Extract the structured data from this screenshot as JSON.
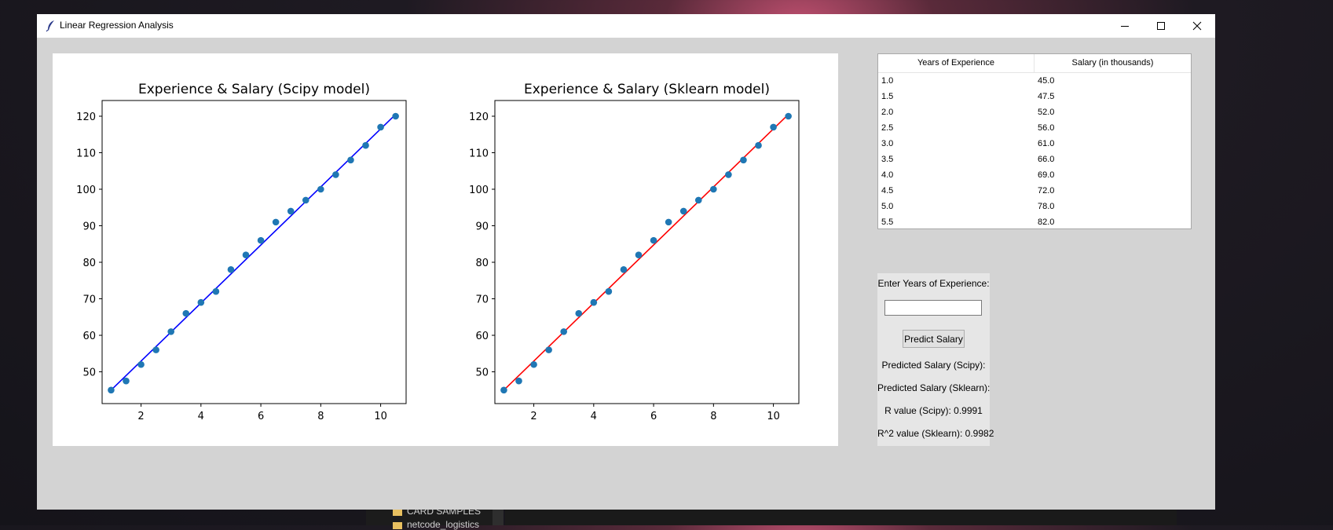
{
  "window": {
    "title": "Linear Regression Analysis"
  },
  "background": {
    "folders": [
      "CARD SAMPLES",
      "netcode_logistics"
    ]
  },
  "table": {
    "headers": [
      "Years of Experience",
      "Salary (in thousands)"
    ],
    "rows": [
      [
        "1.0",
        "45.0"
      ],
      [
        "1.5",
        "47.5"
      ],
      [
        "2.0",
        "52.0"
      ],
      [
        "2.5",
        "56.0"
      ],
      [
        "3.0",
        "61.0"
      ],
      [
        "3.5",
        "66.0"
      ],
      [
        "4.0",
        "69.0"
      ],
      [
        "4.5",
        "72.0"
      ],
      [
        "5.0",
        "78.0"
      ],
      [
        "5.5",
        "82.0"
      ]
    ]
  },
  "panel": {
    "input_label": "Enter Years of Experience:",
    "input_value": "",
    "predict_button": "Predict Salary",
    "predicted_scipy": "Predicted Salary (Scipy):",
    "predicted_sklearn": "Predicted Salary (Sklearn):",
    "r_value": "R value (Scipy): 0.9991",
    "r2_value": "R^2 value (Sklearn): 0.9982"
  },
  "chart_data": [
    {
      "type": "scatter",
      "title": "Experience & Salary (Scipy model)",
      "xlabel": "",
      "ylabel": "",
      "xlim": [
        0.7,
        10.85
      ],
      "ylim": [
        41.3,
        124.3
      ],
      "xticks": [
        2,
        4,
        6,
        8,
        10
      ],
      "yticks": [
        50,
        60,
        70,
        80,
        90,
        100,
        110,
        120
      ],
      "x": [
        1.0,
        1.5,
        2.0,
        2.5,
        3.0,
        3.5,
        4.0,
        4.5,
        5.0,
        5.5,
        6.0,
        6.5,
        7.0,
        7.5,
        8.0,
        8.5,
        9.0,
        9.5,
        10.0,
        10.5
      ],
      "y": [
        45,
        47.5,
        52,
        56,
        61,
        66,
        69,
        72,
        78,
        82,
        86,
        91,
        94,
        97,
        100,
        104,
        108,
        112,
        117,
        120
      ],
      "point_color": "#1f77b4",
      "fit_line": {
        "x": [
          1.0,
          10.5
        ],
        "y": [
          45.0,
          120.5
        ],
        "color": "#0000ff"
      },
      "grid": false
    },
    {
      "type": "scatter",
      "title": "Experience & Salary (Sklearn model)",
      "xlabel": "",
      "ylabel": "",
      "xlim": [
        0.7,
        10.85
      ],
      "ylim": [
        41.3,
        124.3
      ],
      "xticks": [
        2,
        4,
        6,
        8,
        10
      ],
      "yticks": [
        50,
        60,
        70,
        80,
        90,
        100,
        110,
        120
      ],
      "x": [
        1.0,
        1.5,
        2.0,
        2.5,
        3.0,
        3.5,
        4.0,
        4.5,
        5.0,
        5.5,
        6.0,
        6.5,
        7.0,
        7.5,
        8.0,
        8.5,
        9.0,
        9.5,
        10.0,
        10.5
      ],
      "y": [
        45,
        47.5,
        52,
        56,
        61,
        66,
        69,
        72,
        78,
        82,
        86,
        91,
        94,
        97,
        100,
        104,
        108,
        112,
        117,
        120
      ],
      "point_color": "#1f77b4",
      "fit_line": {
        "x": [
          1.0,
          10.5
        ],
        "y": [
          45.0,
          120.5
        ],
        "color": "#ff0000"
      },
      "grid": false
    }
  ]
}
